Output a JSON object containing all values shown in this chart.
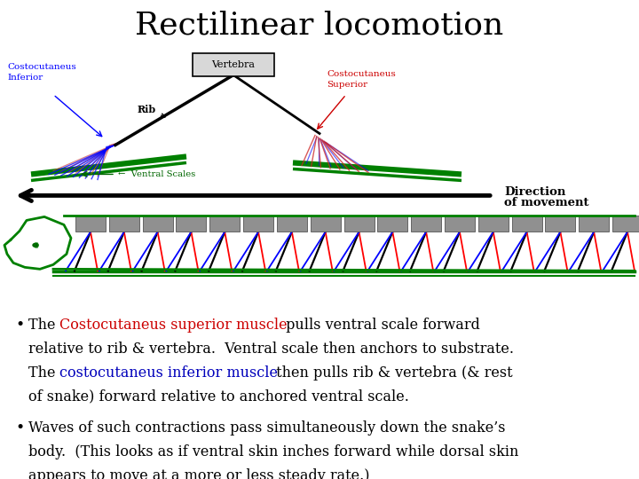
{
  "title": "Rectilinear locomotion",
  "title_bg": "#00C8A0",
  "title_fg": "#000000",
  "title_fs": 26,
  "body_bg": "#ffffff",
  "ff": "DejaVu Serif",
  "bullet_fs": 11.5,
  "b1_color1": "#cc0000",
  "b1_color2": "#0000bb",
  "b1_line1_plain": "The ",
  "b1_line1_colored": "Costocutaneus superior muscle",
  "b1_line1_rest": " pulls ventral scale forward",
  "b1_line2": "relative to rib & vertebra.  Ventral scale then anchors to substrate.",
  "b1_line3_plain": "The ",
  "b1_line3_colored": "costocutaneus inferior muscle",
  "b1_line3_rest": " then pulls rib & vertebra (& rest",
  "b1_line4": "of snake) forward relative to anchored ventral scale.",
  "b2_line1": "Waves of such contractions pass simultaneously down the snake’s",
  "b2_line2": "body.  (This looks as if ventral skin inches forward while dorsal skin",
  "b2_line3": "appears to move at a more or less steady rate.)"
}
